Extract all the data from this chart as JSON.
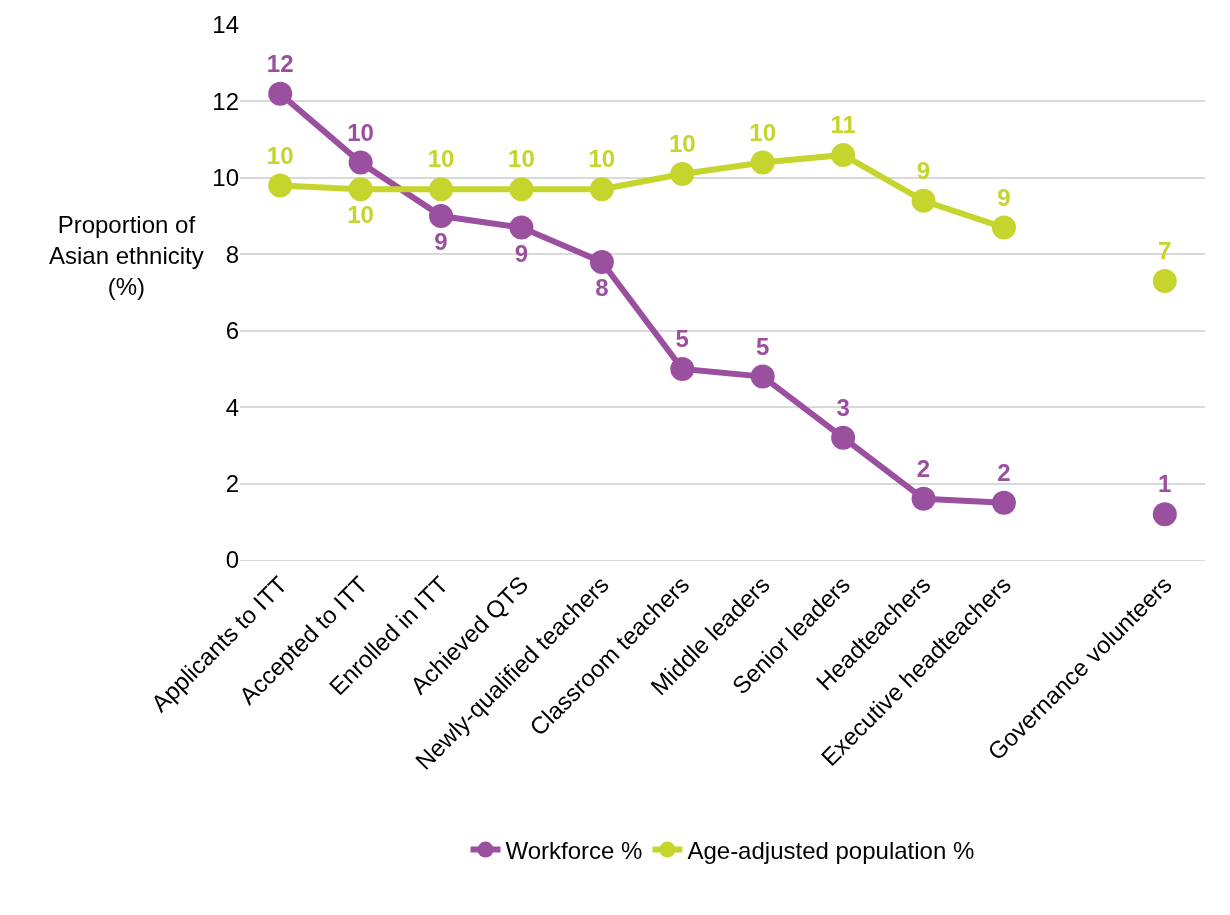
{
  "chart_data": {
    "type": "line",
    "ylabel": "Proportion of\nAsian ethnicity\n(%)",
    "categories": [
      "Applicants to ITT",
      "Accepted to ITT",
      "Enrolled in ITT",
      "Achieved QTS",
      "Newly-qualified teachers",
      "Classroom teachers",
      "Middle leaders",
      "Senior leaders",
      "Headteachers",
      "Executive headteachers",
      null,
      "Governance volunteers"
    ],
    "series": [
      {
        "name": "Workforce %",
        "color": "#9b4f9f",
        "values": [
          12.2,
          10.4,
          9.0,
          8.7,
          7.8,
          5.0,
          4.8,
          3.2,
          1.6,
          1.5,
          null,
          1.2
        ],
        "value_labels": [
          "12",
          "10",
          "9",
          "9",
          "8",
          "5",
          "5",
          "3",
          "2",
          "2",
          null,
          "1"
        ]
      },
      {
        "name": "Age-adjusted population %",
        "color": "#c5d52d",
        "values": [
          9.8,
          9.7,
          9.7,
          9.7,
          9.7,
          10.1,
          10.4,
          10.6,
          9.4,
          8.7,
          null,
          7.3
        ],
        "value_labels": [
          "10",
          "10",
          "10",
          "10",
          "10",
          "10",
          "10",
          "11",
          "9",
          "9",
          null,
          "7"
        ]
      }
    ],
    "ylim": [
      0,
      14
    ],
    "yticks": [
      0,
      2,
      4,
      6,
      8,
      10,
      12,
      14
    ],
    "grid": "y",
    "legend": "bottom",
    "marker": "circle",
    "line_style": "solid"
  }
}
